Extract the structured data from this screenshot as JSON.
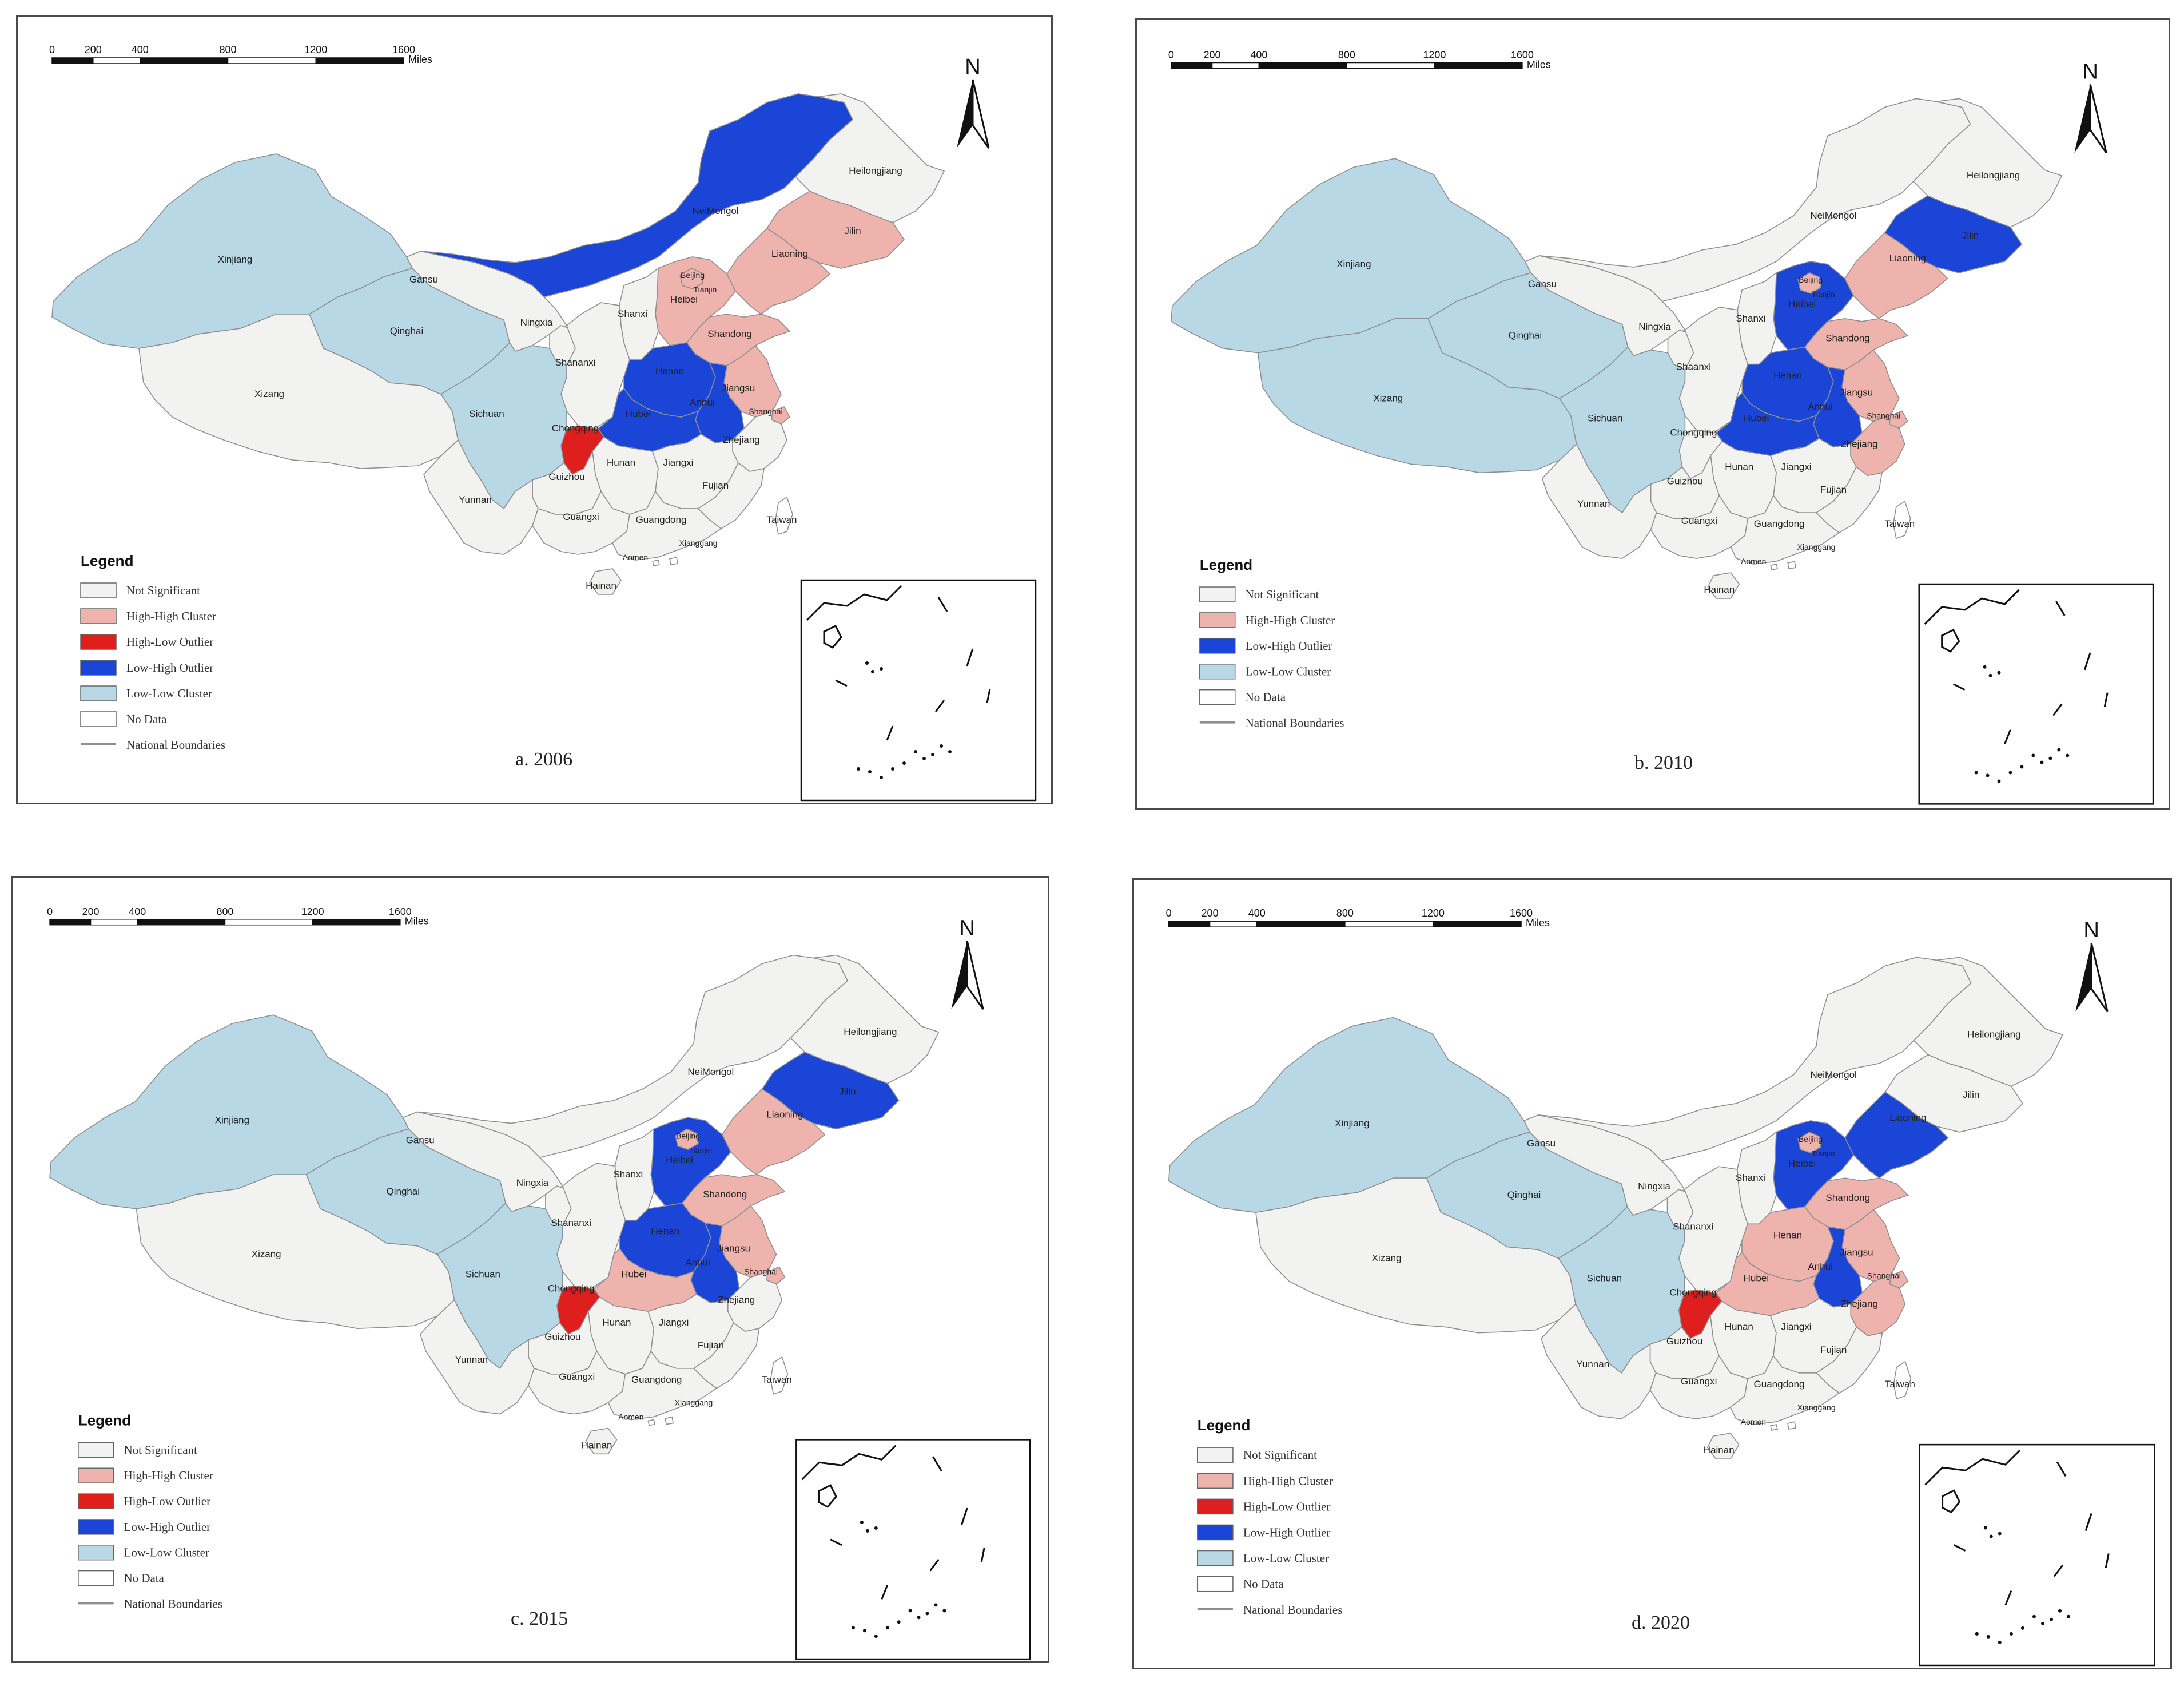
{
  "colors": {
    "not_significant": "#f2f2f0",
    "high_high": "#efb3ae",
    "high_low": "#df1e1e",
    "low_high": "#1b45d6",
    "low_low": "#b8d8e6",
    "no_data": "#ffffff",
    "boundary": "#8f8f8f"
  },
  "scale_bar": {
    "ticks": [
      "0",
      "200",
      "400",
      "800",
      "1200",
      "1600"
    ],
    "unit": "Miles"
  },
  "north_label": "N",
  "legend": {
    "title": "Legend",
    "items": [
      {
        "key": "not_significant",
        "label": "Not Significant"
      },
      {
        "key": "high_high",
        "label": "High-High Cluster"
      },
      {
        "key": "high_low",
        "label": "High-Low Outlier"
      },
      {
        "key": "low_high",
        "label": "Low-High Outlier"
      },
      {
        "key": "low_low",
        "label": "Low-Low Cluster"
      },
      {
        "key": "no_data",
        "label": "No Data"
      },
      {
        "key": "boundary",
        "label": "National Boundaries",
        "line": true
      }
    ]
  },
  "panels": [
    {
      "caption": "a. 2006",
      "legend_keys": [
        "not_significant",
        "high_high",
        "high_low",
        "low_high",
        "low_low",
        "no_data",
        "boundary"
      ],
      "regions": {
        "Xinjiang": "low_low",
        "Qinghai": "low_low",
        "Sichuan": "low_low",
        "Xizang": "not_significant",
        "Gansu": "not_significant",
        "NeiMongol": "low_high",
        "Heilongjiang": "not_significant",
        "Jilin": "high_high",
        "Liaoning": "high_high",
        "Beijing": "high_high",
        "Tianjin": "high_high",
        "Hebei": "high_high",
        "Shandong": "high_high",
        "Jiangsu": "high_high",
        "Shanghai": "high_high",
        "Henan": "low_high",
        "Hubei": "low_high",
        "Anhui": "low_high",
        "Chongqing": "high_low",
        "Zhejiang": "not_significant",
        "Shanxi": "not_significant",
        "Shaanxi": "not_significant",
        "Ningxia": "not_significant",
        "Hunan": "not_significant",
        "Jiangxi": "not_significant",
        "Fujian": "not_significant",
        "Guizhou": "not_significant",
        "Yunnan": "not_significant",
        "Guangxi": "not_significant",
        "Guangdong": "not_significant",
        "Hainan": "not_significant",
        "Taiwan": "no_data",
        "Xianggang": "no_data",
        "Aomen": "no_data"
      },
      "labels": {
        "Xinjiang": "Xinjiang",
        "Qinghai": "Qinghai",
        "Xizang": "Xizang",
        "Sichuan": "Sichuan",
        "Gansu": "Gansu",
        "NeiMongol": "NeiMongol",
        "Heilongjiang": "Heilongjiang",
        "Jilin": "Jilin",
        "Liaoning": "Liaoning",
        "Beijing": "Beijing",
        "Tianjin": "Tianjin",
        "Hebei": "Heibei",
        "Shanxi": "Shanxi",
        "Shandong": "Shandong",
        "Ningxia": "Ningxia",
        "Shaanxi": "Shananxi",
        "Henan": "Henan",
        "Jiangsu": "Jiangsu",
        "Hubei": "Hubei",
        "Anhui": "Anhui",
        "Shanghai": "Shanghai",
        "Chongqing": "Chongqing",
        "Zhejiang": "Zhejiang",
        "Hunan": "Hunan",
        "Jiangxi": "Jiangxi",
        "Fujian": "Fujian",
        "Guizhou": "Guizhou",
        "Yunnan": "Yunnan",
        "Guangxi": "Guangxi",
        "Guangdong": "Guangdong",
        "Taiwan": "Taiwan",
        "Aomen": "Aomen",
        "Xianggang": "Xianggang",
        "Hainan": "Hainan"
      }
    },
    {
      "caption": "b. 2010",
      "legend_keys": [
        "not_significant",
        "high_high",
        "low_high",
        "low_low",
        "no_data",
        "boundary"
      ],
      "regions": {
        "Xinjiang": "low_low",
        "Qinghai": "low_low",
        "Sichuan": "low_low",
        "Xizang": "low_low",
        "Gansu": "not_significant",
        "NeiMongol": "not_significant",
        "Heilongjiang": "not_significant",
        "Jilin": "low_high",
        "Liaoning": "high_high",
        "Beijing": "high_high",
        "Tianjin": "high_high",
        "Hebei": "low_high",
        "Shandong": "high_high",
        "Jiangsu": "high_high",
        "Shanghai": "high_high",
        "Henan": "low_high",
        "Hubei": "low_high",
        "Anhui": "low_high",
        "Chongqing": "not_significant",
        "Zhejiang": "high_high",
        "Shanxi": "not_significant",
        "Shaanxi": "not_significant",
        "Ningxia": "not_significant",
        "Hunan": "not_significant",
        "Jiangxi": "not_significant",
        "Fujian": "not_significant",
        "Guizhou": "not_significant",
        "Yunnan": "not_significant",
        "Guangxi": "not_significant",
        "Guangdong": "not_significant",
        "Hainan": "not_significant",
        "Taiwan": "no_data",
        "Xianggang": "no_data",
        "Aomen": "no_data"
      },
      "labels": {
        "Xinjiang": "Xinjiang",
        "Qinghai": "Qinghai",
        "Xizang": "Xizang",
        "Sichuan": "Sichuan",
        "Gansu": "Gansu",
        "NeiMongol": "NeiMongol",
        "Heilongjiang": "Heilongjiang",
        "Jilin": "Jilin",
        "Liaoning": "Liaoning",
        "Beijing": "Beijing",
        "Tianjin": "Tianjin",
        "Hebei": "Heibei",
        "Shanxi": "Shanxi",
        "Shandong": "Shandong",
        "Ningxia": "Ningxia",
        "Shaanxi": "Shaanxi",
        "Henan": "Henan",
        "Jiangsu": "Jiangsu",
        "Hubei": "Hubei",
        "Anhui": "Anhui",
        "Shanghai": "Shanghai",
        "Chongqing": "Chongqing",
        "Zhejiang": "Zhejiang",
        "Hunan": "Hunan",
        "Jiangxi": "Jiangxi",
        "Fujian": "Fujian",
        "Guizhou": "Guizhou",
        "Yunnan": "Yunnan",
        "Guangxi": "Guangxi",
        "Guangdong": "Guangdong",
        "Taiwan": "Taiwan",
        "Aomen": "Aomen",
        "Xianggang": "Xianggang",
        "Hainan": "Hainan"
      }
    },
    {
      "caption": "c. 2015",
      "legend_keys": [
        "not_significant",
        "high_high",
        "high_low",
        "low_high",
        "low_low",
        "no_data",
        "boundary"
      ],
      "regions": {
        "Xinjiang": "low_low",
        "Qinghai": "low_low",
        "Sichuan": "low_low",
        "Xizang": "not_significant",
        "Gansu": "not_significant",
        "NeiMongol": "not_significant",
        "Heilongjiang": "not_significant",
        "Jilin": "low_high",
        "Liaoning": "high_high",
        "Beijing": "high_high",
        "Tianjin": "high_high",
        "Hebei": "low_high",
        "Shandong": "high_high",
        "Jiangsu": "high_high",
        "Shanghai": "high_high",
        "Henan": "low_high",
        "Hubei": "high_high",
        "Anhui": "low_high",
        "Chongqing": "high_low",
        "Zhejiang": "not_significant",
        "Shanxi": "not_significant",
        "Shaanxi": "not_significant",
        "Ningxia": "not_significant",
        "Hunan": "not_significant",
        "Jiangxi": "not_significant",
        "Fujian": "not_significant",
        "Guizhou": "not_significant",
        "Yunnan": "not_significant",
        "Guangxi": "not_significant",
        "Guangdong": "not_significant",
        "Hainan": "not_significant",
        "Taiwan": "no_data",
        "Xianggang": "no_data",
        "Aomen": "no_data"
      },
      "labels": {
        "Xinjiang": "Xinjiang",
        "Qinghai": "Qinghai",
        "Xizang": "Xizang",
        "Sichuan": "Sichuan",
        "Gansu": "Gansu",
        "NeiMongol": "NeiMongol",
        "Heilongjiang": "Heilongjiang",
        "Jilin": "Jilin",
        "Liaoning": "Liaoning",
        "Beijing": "Beijing",
        "Tianjin": "Tianjin",
        "Hebei": "Heibei",
        "Shanxi": "Shanxi",
        "Shandong": "Shandong",
        "Ningxia": "Ningxia",
        "Shaanxi": "Shananxi",
        "Henan": "Henan",
        "Jiangsu": "Jiangsu",
        "Hubei": "Hubei",
        "Anhui": "Anhui",
        "Shanghai": "Shanghai",
        "Chongqing": "Chongqing",
        "Zhejiang": "Zhejiang",
        "Hunan": "Hunan",
        "Jiangxi": "Jiangxi",
        "Fujian": "Fujian",
        "Guizhou": "Guizhou",
        "Yunnan": "Yunnan",
        "Guangxi": "Guangxi",
        "Guangdong": "Guangdong",
        "Taiwan": "Taiwan",
        "Aomen": "Aomen",
        "Xianggang": "Xianggang",
        "Hainan": "Hainan"
      }
    },
    {
      "caption": "d. 2020",
      "legend_keys": [
        "not_significant",
        "high_high",
        "high_low",
        "low_high",
        "low_low",
        "no_data",
        "boundary"
      ],
      "regions": {
        "Xinjiang": "low_low",
        "Qinghai": "low_low",
        "Sichuan": "low_low",
        "Xizang": "not_significant",
        "Gansu": "not_significant",
        "NeiMongol": "not_significant",
        "Heilongjiang": "not_significant",
        "Jilin": "not_significant",
        "Liaoning": "low_high",
        "Beijing": "high_high",
        "Tianjin": "high_high",
        "Hebei": "low_high",
        "Shandong": "high_high",
        "Jiangsu": "high_high",
        "Shanghai": "high_high",
        "Henan": "high_high",
        "Hubei": "high_high",
        "Anhui": "low_high",
        "Chongqing": "high_low",
        "Zhejiang": "high_high",
        "Shanxi": "not_significant",
        "Shaanxi": "not_significant",
        "Ningxia": "not_significant",
        "Hunan": "not_significant",
        "Jiangxi": "not_significant",
        "Fujian": "not_significant",
        "Guizhou": "not_significant",
        "Yunnan": "not_significant",
        "Guangxi": "not_significant",
        "Guangdong": "not_significant",
        "Hainan": "not_significant",
        "Taiwan": "no_data",
        "Xianggang": "no_data",
        "Aomen": "no_data"
      },
      "labels": {
        "Xinjiang": "Xinjiang",
        "Qinghai": "Qinghai",
        "Xizang": "Xizang",
        "Sichuan": "Sichuan",
        "Gansu": "Gansu",
        "NeiMongol": "NeiMongol",
        "Heilongjiang": "Heilongjiang",
        "Jilin": "Jilin",
        "Liaoning": "Liaoning",
        "Beijing": "Beijing",
        "Tianjin": "Tianjin",
        "Hebei": "Heibei",
        "Shanxi": "Shanxi",
        "Shandong": "Shandong",
        "Ningxia": "Ningxia",
        "Shaanxi": "Shananxi",
        "Henan": "Henan",
        "Jiangsu": "Jiangsu",
        "Hubei": "Hubei",
        "Anhui": "Anhui",
        "Shanghai": "Shanghai",
        "Chongqing": "Chongqing",
        "Zhejiang": "Zhejiang",
        "Hunan": "Hunan",
        "Jiangxi": "Jiangxi",
        "Fujian": "Fujian",
        "Guizhou": "Guizhou",
        "Yunnan": "Yunnan",
        "Guangxi": "Guangxi",
        "Guangdong": "Guangdong",
        "Taiwan": "Taiwan",
        "Aomen": "Aomen",
        "Xianggang": "Xianggang",
        "Hainan": "Hainan"
      }
    }
  ]
}
